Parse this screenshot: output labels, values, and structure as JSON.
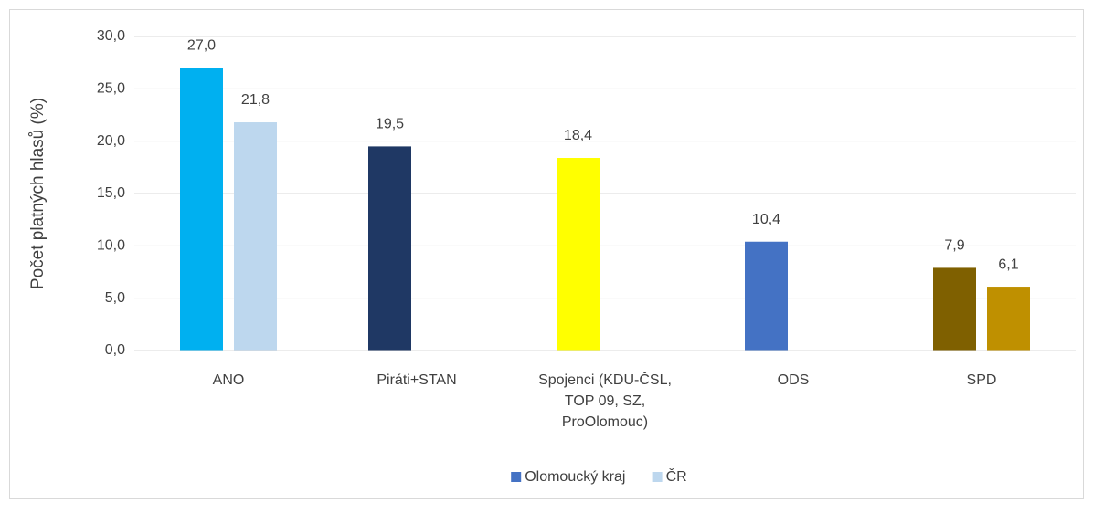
{
  "chart_data": {
    "type": "bar",
    "y_label": "Počet platných hlasů (%)",
    "categories": [
      "ANO",
      "Piráti+STAN",
      "Spojenci (KDU-ČSL, TOP 09, SZ, ProOlomouc)",
      "ODS",
      "SPD"
    ],
    "series": [
      {
        "name": "Olomoucký kraj",
        "color": "#4472c4",
        "colors": [
          "#00b0f0",
          "#1f3864",
          "#ffff00",
          "#4472c4",
          "#7f6000"
        ],
        "values": [
          27.0,
          19.5,
          18.4,
          10.4,
          7.9
        ],
        "value_labels": [
          "27,0",
          "19,5",
          "18,4",
          "10,4",
          "7,9"
        ]
      },
      {
        "name": "ČR",
        "color": "#bdd7ee",
        "colors": [
          "#bdd7ee",
          null,
          null,
          null,
          "#bf9000"
        ],
        "values": [
          21.8,
          null,
          null,
          null,
          6.1
        ],
        "value_labels": [
          "21,8",
          null,
          null,
          null,
          "6,1"
        ]
      }
    ],
    "ylim": [
      0,
      30
    ],
    "yticks": [
      {
        "value": 0,
        "label": "0,0"
      },
      {
        "value": 5,
        "label": "5,0"
      },
      {
        "value": 10,
        "label": "10,0"
      },
      {
        "value": 15,
        "label": "15,0"
      },
      {
        "value": 20,
        "label": "20,0"
      },
      {
        "value": 25,
        "label": "25,0"
      },
      {
        "value": 30,
        "label": "30,0"
      }
    ],
    "grid": true,
    "legend": "bottom"
  }
}
